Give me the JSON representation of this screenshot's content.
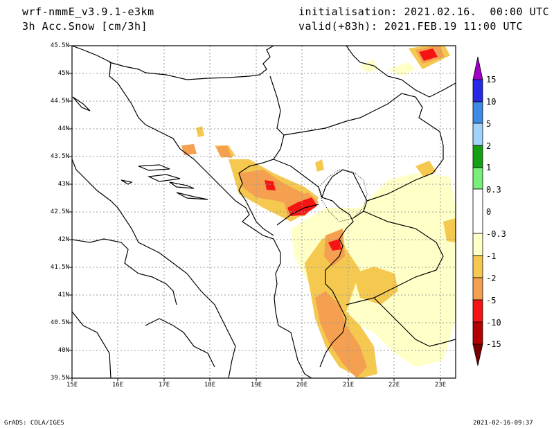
{
  "header": {
    "model": "wrf-nmmE_v3.9.1-e3km",
    "field": "3h Acc.Snow [cm/3h]",
    "init": "initialisation: 2021.02.16.  00:00 UTC",
    "valid": "valid(+83h): 2021.FEB.19 11:00 UTC"
  },
  "axes": {
    "lat_labels": [
      "45.5N",
      "45N",
      "44.5N",
      "44N",
      "43.5N",
      "43N",
      "42.5N",
      "42N",
      "41.5N",
      "41N",
      "40.5N",
      "40N",
      "39.5N"
    ],
    "lon_labels": [
      "15E",
      "16E",
      "17E",
      "18E",
      "19E",
      "20E",
      "21E",
      "22E",
      "23E"
    ]
  },
  "colorbar": {
    "labels": [
      "15",
      "10",
      "5",
      "2",
      "1",
      "0.3",
      "0",
      "-0.3",
      "-1",
      "-2",
      "-5",
      "-10",
      "-15"
    ],
    "colors": [
      "#a000c8",
      "#2828e6",
      "#3c8ce6",
      "#a0d2fa",
      "#14a014",
      "#78f078",
      "#ffffff",
      "#ffffc8",
      "#f5c850",
      "#f5a050",
      "#f51414",
      "#b40000",
      "#780000"
    ]
  },
  "footer": {
    "left": "GrADS: COLA/IGES",
    "right": "2021-02-16-09:37"
  }
}
